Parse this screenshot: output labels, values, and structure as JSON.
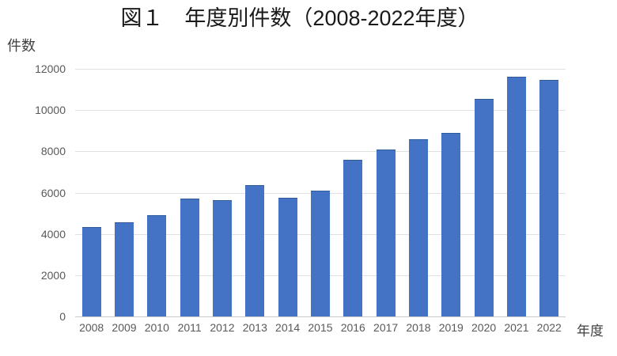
{
  "chart_data": {
    "type": "bar",
    "title": "図１　年度別件数（2008-2022年度）",
    "xlabel": "年度",
    "ylabel": "件数",
    "categories": [
      "2008",
      "2009",
      "2010",
      "2011",
      "2012",
      "2013",
      "2014",
      "2015",
      "2016",
      "2017",
      "2018",
      "2019",
      "2020",
      "2021",
      "2022"
    ],
    "values": [
      4350,
      4550,
      4900,
      5700,
      5650,
      6350,
      5750,
      6100,
      7600,
      8100,
      8600,
      8900,
      10550,
      11600,
      11450
    ],
    "ylim": [
      0,
      12000
    ],
    "yticks": [
      0,
      2000,
      4000,
      6000,
      8000,
      10000,
      12000
    ],
    "grid": true,
    "legend": false,
    "bar_color": "#4472C4",
    "bar_edge_color": "#2f5b9d",
    "gridline_color": "#e0e0e0",
    "axis_line_color": "#c9c9c9",
    "tick_label_color": "#595959",
    "axis_title_color": "#404040",
    "title_color": "#1a1a1a"
  }
}
